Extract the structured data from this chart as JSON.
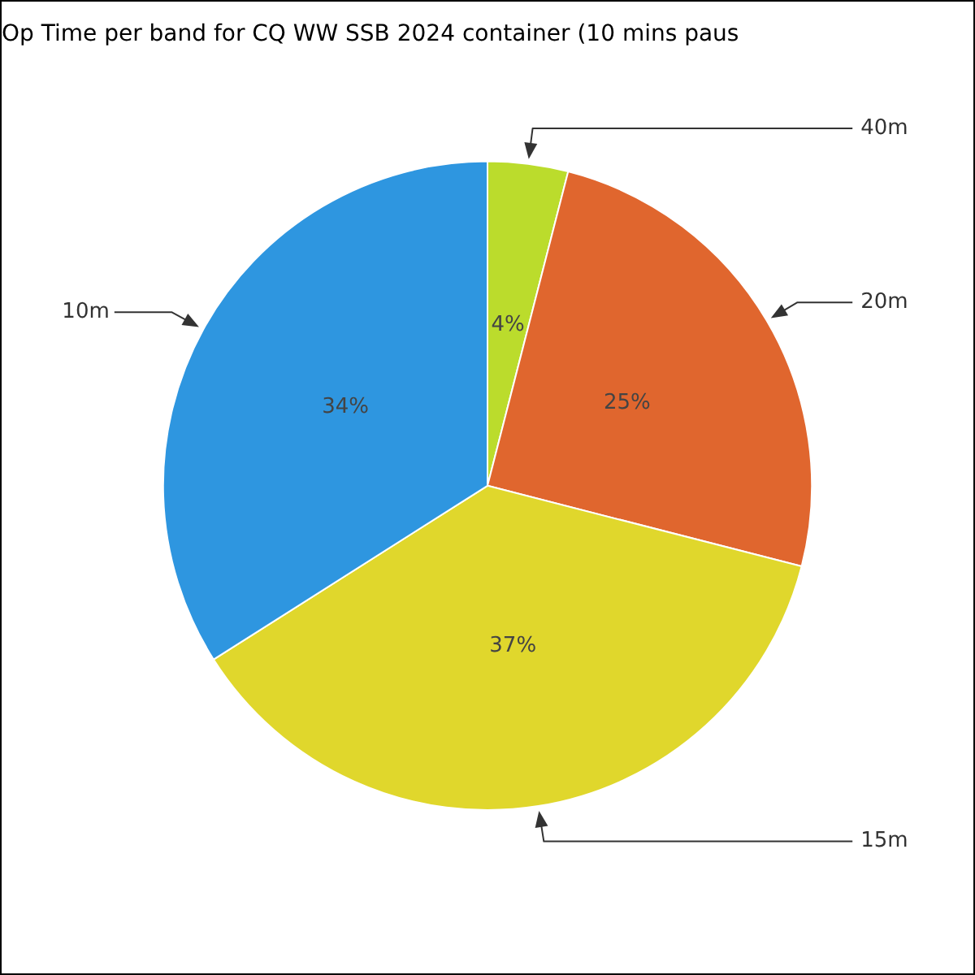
{
  "chart_data": {
    "type": "pie",
    "title": "Op Time per band for CQ WW SSB 2024 container (10 mins paus",
    "categories": [
      "40m",
      "20m",
      "15m",
      "10m"
    ],
    "values": [
      4,
      25,
      37,
      34
    ],
    "colors": [
      "#bbdc2c",
      "#e0662e",
      "#e0d72c",
      "#2e96e0"
    ],
    "value_labels": [
      "4%",
      "25%",
      "37%",
      "34%"
    ],
    "legend": false
  }
}
